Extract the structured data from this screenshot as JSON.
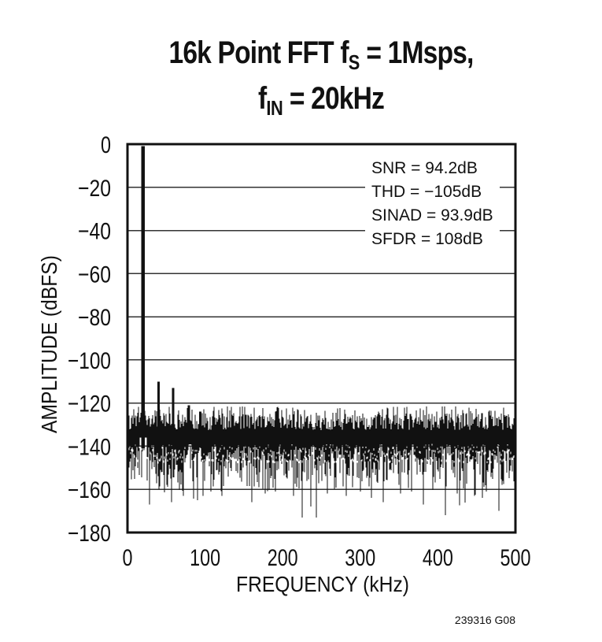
{
  "page": {
    "background": "#ffffff",
    "ink_color": "#111111",
    "grid_color": "#333333",
    "footer_note": "239316 G08"
  },
  "title": {
    "line1_pre": "16k Point FFT f",
    "line1_sub": "S",
    "line1_post": " = 1Msps,",
    "line2_pre": "f",
    "line2_sub": "IN",
    "line2_post": " = 20kHz"
  },
  "chart_data": {
    "type": "line",
    "title": "16k Point FFT fS = 1Msps, fIN = 20kHz",
    "xlabel": "FREQUENCY (kHz)",
    "ylabel": "AMPLITUDE (dBFS)",
    "xlim": [
      0,
      500
    ],
    "ylim": [
      -180,
      0
    ],
    "x_ticks": {
      "values": [
        0,
        100,
        200,
        300,
        400,
        500
      ],
      "labels": [
        "0",
        "100",
        "200",
        "300",
        "400",
        "500"
      ]
    },
    "y_ticks": {
      "values": [
        0,
        -20,
        -40,
        -60,
        -80,
        -100,
        -120,
        -140,
        -160,
        -180
      ],
      "labels": [
        "0",
        "−20",
        "−40",
        "−60",
        "−80",
        "−100",
        "−120",
        "−140",
        "−160",
        "−180"
      ]
    },
    "grid": {
      "horizontal": true,
      "vertical": false
    },
    "series_name": "FFT spectrum",
    "peaks": [
      {
        "name": "fundamental",
        "freq_khz": 20,
        "level_dbfs": -1
      },
      {
        "name": "harmonic-2",
        "freq_khz": 40,
        "level_dbfs": -110
      },
      {
        "name": "harmonic-3",
        "freq_khz": 59,
        "level_dbfs": -113
      },
      {
        "name": "spur-1",
        "freq_khz": 79,
        "level_dbfs": -121
      },
      {
        "name": "spur-2",
        "freq_khz": 94,
        "level_dbfs": -124
      }
    ],
    "noise_floor": {
      "top_dbfs": -122,
      "mean_dbfs": -138,
      "core_bottom_dbfs": -147,
      "strand_bottom_dbfs": -160,
      "deepest_dbfs": -173
    },
    "deep_nulls": [
      {
        "freq_khz": 28,
        "level_dbfs": -167
      },
      {
        "freq_khz": 57,
        "level_dbfs": -166
      },
      {
        "freq_khz": 72,
        "level_dbfs": -163
      },
      {
        "freq_khz": 90,
        "level_dbfs": -165
      },
      {
        "freq_khz": 107,
        "level_dbfs": -161
      },
      {
        "freq_khz": 122,
        "level_dbfs": -163
      },
      {
        "freq_khz": 160,
        "level_dbfs": -166
      },
      {
        "freq_khz": 177,
        "level_dbfs": -162
      },
      {
        "freq_khz": 191,
        "level_dbfs": -161
      },
      {
        "freq_khz": 214,
        "level_dbfs": -163
      },
      {
        "freq_khz": 236,
        "level_dbfs": -168
      },
      {
        "freq_khz": 243,
        "level_dbfs": -173
      },
      {
        "freq_khz": 258,
        "level_dbfs": -162
      },
      {
        "freq_khz": 282,
        "level_dbfs": -163
      },
      {
        "freq_khz": 300,
        "level_dbfs": -161
      },
      {
        "freq_khz": 314,
        "level_dbfs": -164
      },
      {
        "freq_khz": 330,
        "level_dbfs": -166
      },
      {
        "freq_khz": 352,
        "level_dbfs": -162
      },
      {
        "freq_khz": 366,
        "level_dbfs": -161
      },
      {
        "freq_khz": 381,
        "level_dbfs": -167
      },
      {
        "freq_khz": 410,
        "level_dbfs": -172
      },
      {
        "freq_khz": 425,
        "level_dbfs": -162
      },
      {
        "freq_khz": 447,
        "level_dbfs": -163
      },
      {
        "freq_khz": 462,
        "level_dbfs": -161
      },
      {
        "freq_khz": 479,
        "level_dbfs": -170
      }
    ],
    "stats": {
      "lines": [
        "SNR = 94.2dB",
        "THD = −105dB",
        "SINAD = 93.9dB",
        "SFDR = 108dB"
      ],
      "snr_db": 94.2,
      "thd_db": -105,
      "sinad_db": 93.9,
      "sfdr_db": 108
    }
  }
}
